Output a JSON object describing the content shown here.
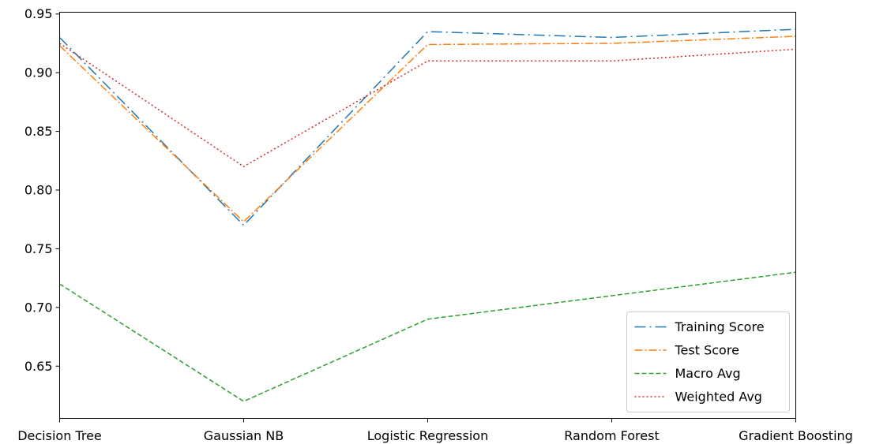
{
  "chart_data": {
    "type": "line",
    "categories": [
      "Decision Tree",
      "Gaussian NB",
      "Logistic Regression",
      "Random Forest",
      "Gradient Boosting"
    ],
    "series": [
      {
        "name": "Training Score",
        "values": [
          0.93,
          0.77,
          0.935,
          0.93,
          0.937
        ],
        "color": "#1f77b4",
        "linestyle": "dashdotdot"
      },
      {
        "name": "Test Score",
        "values": [
          0.923,
          0.773,
          0.924,
          0.925,
          0.931
        ],
        "color": "#ff7f0e",
        "linestyle": "dashdot"
      },
      {
        "name": "Macro Avg",
        "values": [
          0.72,
          0.62,
          0.69,
          0.71,
          0.73
        ],
        "color": "#2ca02c",
        "linestyle": "dashed"
      },
      {
        "name": "Weighted Avg",
        "values": [
          0.925,
          0.82,
          0.91,
          0.91,
          0.92
        ],
        "color": "#d62728",
        "linestyle": "dotted"
      }
    ],
    "yticks": [
      "0.65",
      "0.70",
      "0.75",
      "0.80",
      "0.85",
      "0.90",
      "0.95"
    ],
    "ylim": [
      0.6055,
      0.9515
    ],
    "grid": false,
    "legend_position": "lower-right"
  }
}
